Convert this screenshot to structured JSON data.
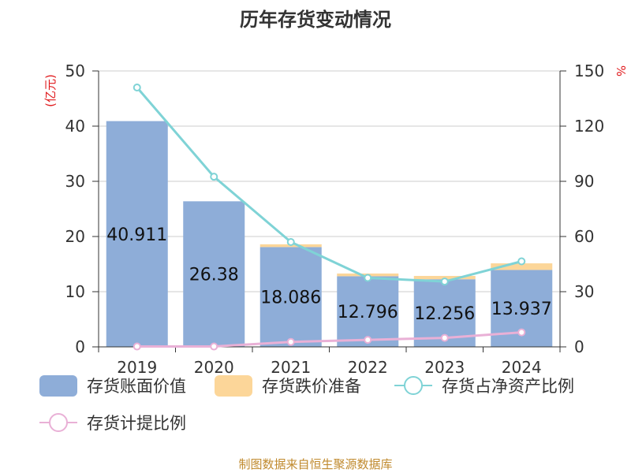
{
  "chart_data": {
    "type": "bar",
    "title": "历年存货变动情况",
    "categories": [
      "2019",
      "2020",
      "2021",
      "2022",
      "2023",
      "2024"
    ],
    "left_axis": {
      "unit": "(亿元)",
      "ylim": [
        0,
        50
      ],
      "ticks": [
        "0",
        "10",
        "20",
        "30",
        "40",
        "50"
      ]
    },
    "right_axis": {
      "unit": "%",
      "ylim": [
        0,
        150
      ],
      "ticks": [
        "0",
        "30",
        "60",
        "90",
        "120",
        "150"
      ]
    },
    "series": [
      {
        "name": "存货账面价值",
        "type": "bar",
        "axis": "left",
        "color": "#8eadd8",
        "values": [
          40.911,
          26.38,
          18.086,
          12.796,
          12.256,
          13.937
        ],
        "labels": [
          "40.911",
          "26.38",
          "18.086",
          "12.796",
          "12.256",
          "13.937"
        ]
      },
      {
        "name": "存货跌价准备",
        "type": "bar",
        "axis": "left",
        "stacked": true,
        "color": "#fcd699",
        "values": [
          0.0,
          0.0,
          0.5,
          0.5,
          0.6,
          1.2
        ]
      },
      {
        "name": "存货占净资产比例",
        "type": "line",
        "axis": "right",
        "color": "#7fd3d6",
        "values": [
          141,
          92.5,
          57,
          37.5,
          35.5,
          46.5
        ]
      },
      {
        "name": "存货计提比例",
        "type": "line",
        "axis": "right",
        "color": "#e9b0d6",
        "values": [
          0.2,
          0.2,
          2.7,
          3.8,
          4.9,
          7.9
        ]
      }
    ],
    "grid": true,
    "legend_position": "bottom",
    "source": "制图数据来自恒生聚源数据库"
  }
}
